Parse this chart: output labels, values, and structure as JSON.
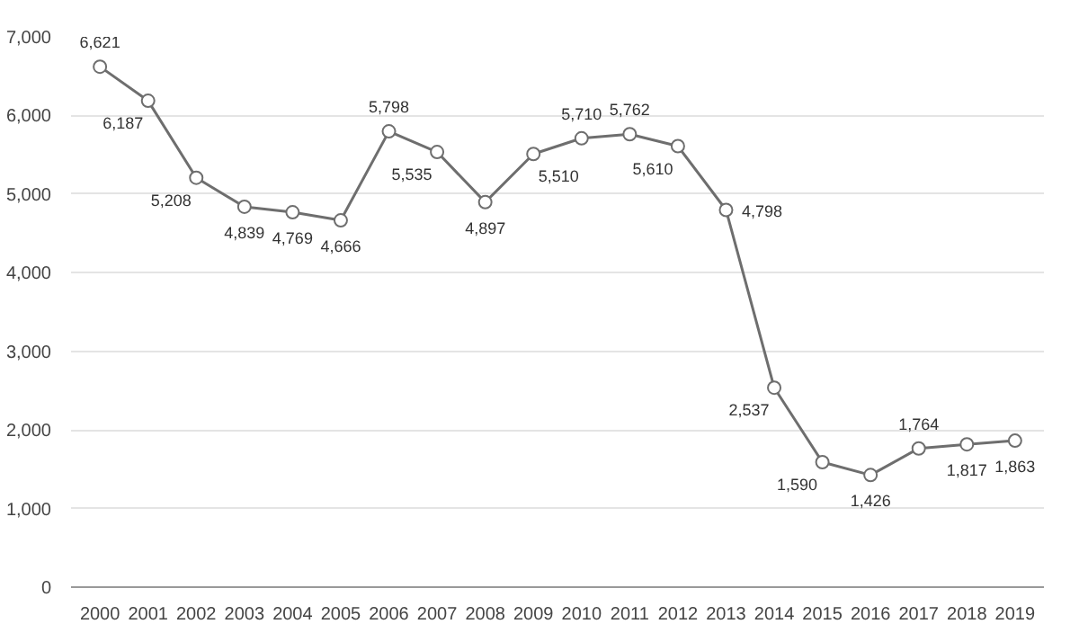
{
  "chart_data": {
    "type": "line",
    "categories": [
      "2000",
      "2001",
      "2002",
      "2003",
      "2004",
      "2005",
      "2006",
      "2007",
      "2008",
      "2009",
      "2010",
      "2011",
      "2012",
      "2013",
      "2014",
      "2015",
      "2016",
      "2017",
      "2018",
      "2019"
    ],
    "series": [
      {
        "color": "#6e6e6e",
        "values": [
          6621,
          6187,
          5208,
          4839,
          4769,
          4666,
          5798,
          5535,
          4897,
          5510,
          5710,
          5762,
          5610,
          4798,
          2537,
          1590,
          1426,
          1764,
          1817,
          1863
        ]
      }
    ],
    "ylim": [
      0,
      7000
    ],
    "yticks": [
      {
        "value": 0,
        "label": "0"
      },
      {
        "value": 1000,
        "label": "1,000"
      },
      {
        "value": 2000,
        "label": "2,000"
      },
      {
        "value": 3000,
        "label": "3,000"
      },
      {
        "value": 4000,
        "label": "4,000"
      },
      {
        "value": 5000,
        "label": "5,000"
      },
      {
        "value": 6000,
        "label": "6,000"
      },
      {
        "value": 7000,
        "label": "7,000"
      }
    ],
    "value_labels": [
      "6,621",
      "6,187",
      "5,208",
      "4,839",
      "4,769",
      "4,666",
      "5,798",
      "5,535",
      "4,897",
      "5,510",
      "5,710",
      "5,762",
      "5,610",
      "4,798",
      "2,537",
      "1,590",
      "1,426",
      "1,764",
      "1,817",
      "1,863"
    ],
    "grid": "y",
    "marker": "circle",
    "line_style": "solid"
  }
}
